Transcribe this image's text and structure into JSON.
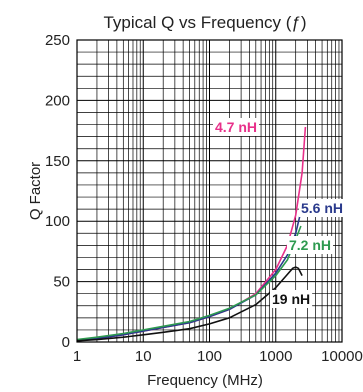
{
  "chart_data": {
    "type": "line",
    "title": "Typical Q vs Frequency (ƒ)",
    "xlabel": "Frequency (MHz)",
    "ylabel": "Q Factor",
    "x_scale": "log",
    "xlim": [
      1,
      10000
    ],
    "ylim": [
      0,
      250
    ],
    "x_ticks": [
      "1",
      "10",
      "100",
      "1000",
      "10000"
    ],
    "y_ticks": [
      "0",
      "50",
      "100",
      "150",
      "200",
      "250"
    ],
    "grid": true,
    "series": [
      {
        "name": "4.7 nH",
        "color": "#e8308a",
        "x": [
          1,
          2,
          5,
          10,
          20,
          50,
          100,
          200,
          500,
          1000,
          1500,
          2000,
          2500,
          2800
        ],
        "y": [
          1,
          3,
          6,
          9,
          12,
          16,
          21,
          27,
          40,
          60,
          80,
          105,
          140,
          178
        ]
      },
      {
        "name": "5.6 nH",
        "color": "#2a3a8c",
        "x": [
          1,
          2,
          5,
          10,
          20,
          50,
          100,
          200,
          500,
          1000,
          1500,
          2000,
          2400,
          2600
        ],
        "y": [
          1,
          3,
          6,
          9,
          12,
          16,
          21,
          27,
          39,
          57,
          72,
          90,
          108,
          115
        ]
      },
      {
        "name": "7.2 nH",
        "color": "#2e9a50",
        "x": [
          1,
          2,
          5,
          10,
          20,
          50,
          100,
          200,
          500,
          1000,
          1500,
          2000,
          2400
        ],
        "y": [
          2,
          4,
          7,
          10,
          13,
          17,
          22,
          28,
          39,
          55,
          68,
          85,
          96
        ]
      },
      {
        "name": "19 nH",
        "color": "#111111",
        "x": [
          1,
          2,
          5,
          10,
          20,
          50,
          100,
          200,
          500,
          1000,
          1500,
          1800,
          2000,
          2200,
          2500
        ],
        "y": [
          1,
          2,
          4,
          6,
          8,
          11,
          15,
          20,
          31,
          45,
          56,
          61,
          62,
          61,
          55
        ]
      }
    ]
  }
}
